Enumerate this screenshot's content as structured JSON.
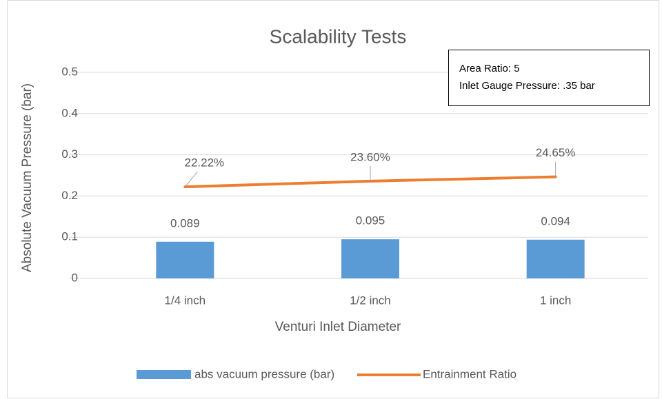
{
  "chart_data": {
    "type": "combo",
    "title": "Scalability Tests",
    "x_label": "Venturi Inlet Diameter",
    "y_label": "Absolute Vacuum Pressure (bar)",
    "categories": [
      "1/4 inch",
      "1/2 inch",
      "1 inch"
    ],
    "series": [
      {
        "name": "abs vacuum pressure (bar)",
        "type": "bar",
        "color": "#5b9bd5",
        "values": [
          0.089,
          0.095,
          0.094
        ],
        "value_labels": [
          "0.089",
          "0.095",
          "0.094"
        ]
      },
      {
        "name": "Entrainment Ratio",
        "type": "line",
        "color": "#ed7d31",
        "values": [
          0.2222,
          0.236,
          0.2465
        ],
        "value_labels": [
          "22.22%",
          "23.60%",
          "24.65%"
        ]
      }
    ],
    "ylim": [
      0,
      0.5
    ],
    "yticks": [
      0,
      0.1,
      0.2,
      0.3,
      0.4,
      0.5
    ],
    "grid": true,
    "legend": "bottom",
    "annotations": [
      "Area Ratio: 5",
      "Inlet Gauge Pressure: .35 bar"
    ]
  }
}
